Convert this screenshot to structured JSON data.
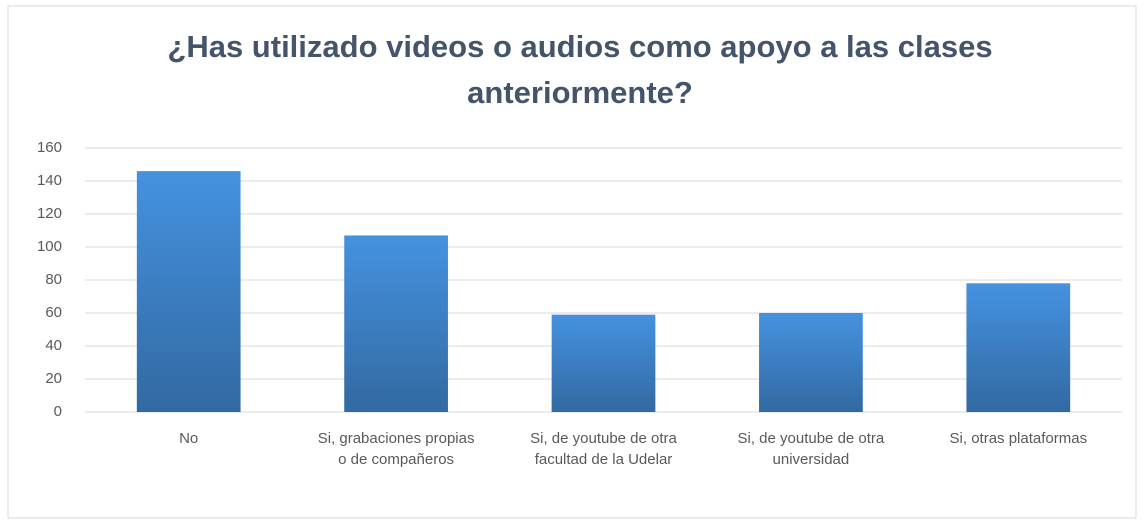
{
  "chart_data": {
    "type": "bar",
    "title": "¿Has utilizado videos o audios como apoyo a las clases anteriormente?",
    "categories": [
      "No",
      "Si, grabaciones propias o de compañeros",
      "Si, de youtube de otra facultad de la Udelar",
      "Si, de youtube de otra universidad",
      "Si, otras plataformas"
    ],
    "values": [
      146,
      107,
      59,
      60,
      78
    ],
    "color": "#4592e0",
    "ylim": [
      0,
      160
    ],
    "yticks": [
      0,
      20,
      40,
      60,
      80,
      100,
      120,
      140,
      160
    ],
    "grid": true
  }
}
